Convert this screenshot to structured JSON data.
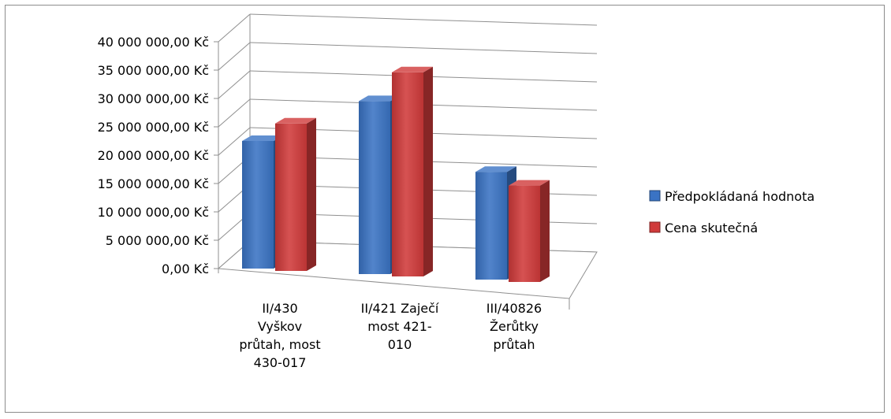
{
  "chart_data": {
    "type": "bar",
    "title": "",
    "xlabel": "",
    "ylabel": "",
    "ylim": [
      0,
      40000000
    ],
    "yticks": [
      {
        "value": 0,
        "label": "0,00 Kč"
      },
      {
        "value": 5000000,
        "label": "5 000 000,00 Kč"
      },
      {
        "value": 10000000,
        "label": "10 000 000,00 Kč"
      },
      {
        "value": 15000000,
        "label": "15 000 000,00 Kč"
      },
      {
        "value": 20000000,
        "label": "20 000 000,00 Kč"
      },
      {
        "value": 25000000,
        "label": "25 000 000,00 Kč"
      },
      {
        "value": 30000000,
        "label": "30 000 000,00 Kč"
      },
      {
        "value": 35000000,
        "label": "35 000 000,00 Kč"
      },
      {
        "value": 40000000,
        "label": "40 000 000,00 Kč"
      }
    ],
    "categories": [
      [
        "II/430",
        "Vyškov",
        "průtah, most",
        "430-017"
      ],
      [
        "II/421 Zaječí",
        "most 421-",
        "010"
      ],
      [
        "III/40826",
        "Žerůtky",
        "průtah"
      ]
    ],
    "series": [
      {
        "name": "Předpokládaná hodnota",
        "color": "#3a73c4",
        "values": [
          22500000,
          30500000,
          19000000
        ]
      },
      {
        "name": "Cena skutečná",
        "color": "#d03a3a",
        "values": [
          26000000,
          36000000,
          17000000
        ]
      }
    ],
    "grid": true,
    "legend_position": "right",
    "style": "3d-clustered-column"
  }
}
